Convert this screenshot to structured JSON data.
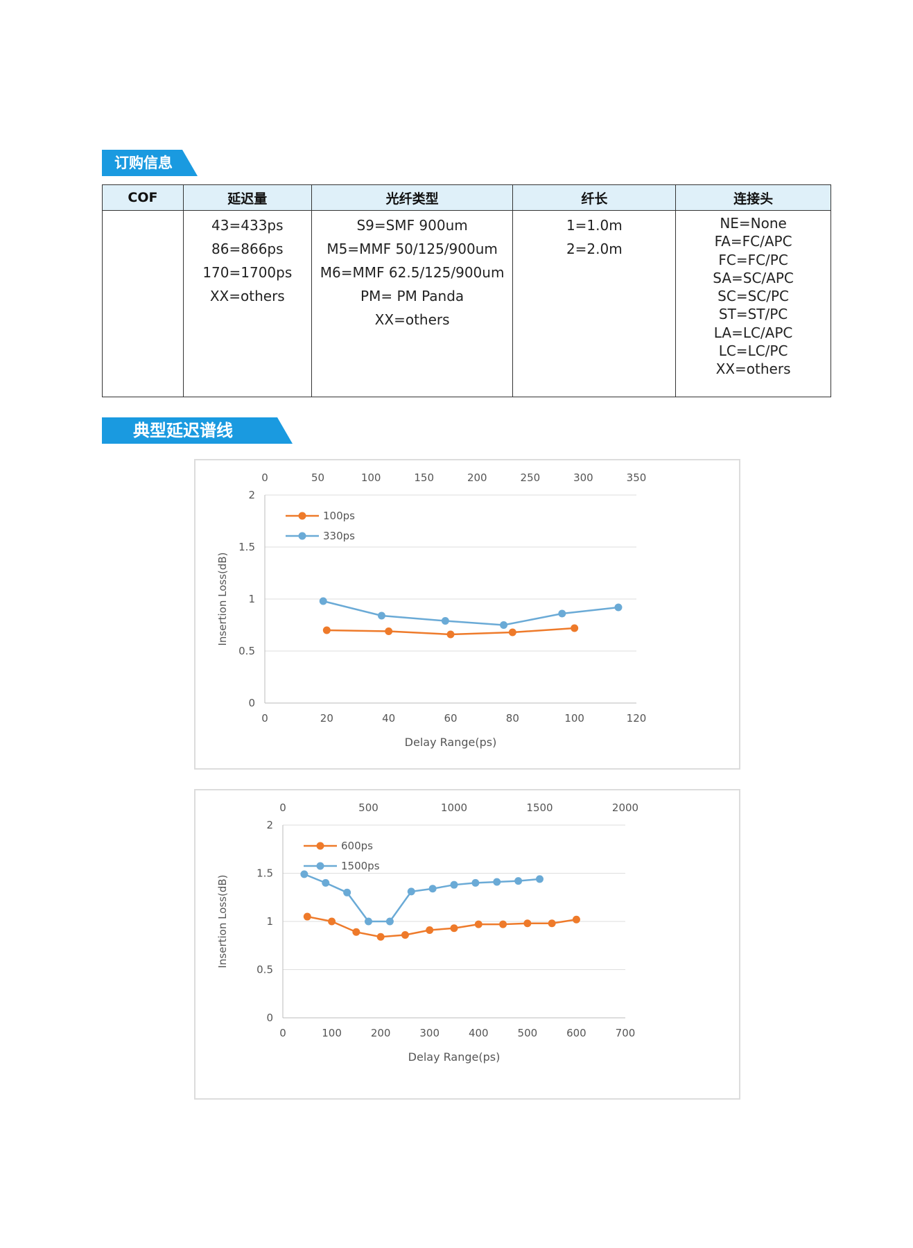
{
  "sections": {
    "ordering": "订购信息",
    "curves": "典型延迟谱线"
  },
  "table": {
    "headers": [
      "COF",
      "延迟量",
      "光纤类型",
      "纤长",
      "连接头"
    ],
    "delay": [
      "43=433ps",
      "86=866ps",
      "170=1700ps",
      "XX=others"
    ],
    "fiber": [
      "S9=SMF 900um",
      "M5=MMF 50/125/900um",
      "M6=MMF 62.5/125/900um",
      "PM= PM Panda",
      "XX=others"
    ],
    "length": [
      "1=1.0m",
      "2=2.0m"
    ],
    "connector": [
      "NE=None",
      "FA=FC/APC",
      "FC=FC/PC",
      "SA=SC/APC",
      "SC=SC/PC",
      "ST=ST/PC",
      "LA=LC/APC",
      "LC=LC/PC",
      "XX=others"
    ]
  },
  "colors": {
    "orange": "#ee7a2a",
    "blue": "#6aaad6",
    "accent": "#1a9ae0"
  },
  "chart_data": [
    {
      "type": "line",
      "title": "",
      "xlabel": "Delay Range(ps)",
      "ylabel": "Insertion Loss(dB)",
      "xlim": [
        0,
        120
      ],
      "x_ticks": [
        0,
        20,
        40,
        60,
        80,
        100,
        120
      ],
      "x2lim": [
        0,
        350
      ],
      "x2_ticks": [
        0,
        50,
        100,
        150,
        200,
        250,
        300,
        350
      ],
      "ylim": [
        0,
        2
      ],
      "y_ticks": [
        0,
        0.5,
        1,
        1.5,
        2
      ],
      "y_tick_labels": [
        "0",
        "0.5",
        "1",
        "1.5",
        "2"
      ],
      "legend": "top-left",
      "series": [
        {
          "name": "100ps",
          "color": "#ee7a2a",
          "axis": "bottom",
          "x": [
            20,
            40,
            60,
            80,
            100
          ],
          "y": [
            0.7,
            0.69,
            0.66,
            0.68,
            0.72
          ]
        },
        {
          "name": "330ps",
          "color": "#6aaad6",
          "axis": "top",
          "x": [
            55,
            110,
            170,
            225,
            280,
            333
          ],
          "y": [
            0.98,
            0.84,
            0.79,
            0.75,
            0.86,
            0.92
          ]
        }
      ]
    },
    {
      "type": "line",
      "title": "",
      "xlabel": "Delay Range(ps)",
      "ylabel": "Insertion Loss(dB)",
      "xlim": [
        0,
        700
      ],
      "x_ticks": [
        0,
        100,
        200,
        300,
        400,
        500,
        600,
        700
      ],
      "x2lim": [
        0,
        2000
      ],
      "x2_ticks": [
        0,
        500,
        1000,
        1500,
        2000
      ],
      "ylim": [
        0,
        2
      ],
      "y_ticks": [
        0,
        0.5,
        1,
        1.5,
        2
      ],
      "y_tick_labels": [
        "0",
        "0.5",
        "1",
        "1.5",
        "2"
      ],
      "legend": "top-left",
      "series": [
        {
          "name": "600ps",
          "color": "#ee7a2a",
          "axis": "bottom",
          "x": [
            50,
            100,
            150,
            200,
            250,
            300,
            350,
            400,
            450,
            500,
            550,
            600
          ],
          "y": [
            1.05,
            1.0,
            0.89,
            0.84,
            0.86,
            0.91,
            0.93,
            0.97,
            0.97,
            0.98,
            0.98,
            1.02
          ]
        },
        {
          "name": "1500ps",
          "color": "#6aaad6",
          "axis": "top",
          "x": [
            125,
            250,
            375,
            500,
            625,
            750,
            875,
            1000,
            1125,
            1250,
            1375,
            1500
          ],
          "y": [
            1.49,
            1.4,
            1.3,
            1.0,
            1.0,
            1.31,
            1.34,
            1.38,
            1.4,
            1.41,
            1.42,
            1.44
          ]
        }
      ]
    }
  ]
}
